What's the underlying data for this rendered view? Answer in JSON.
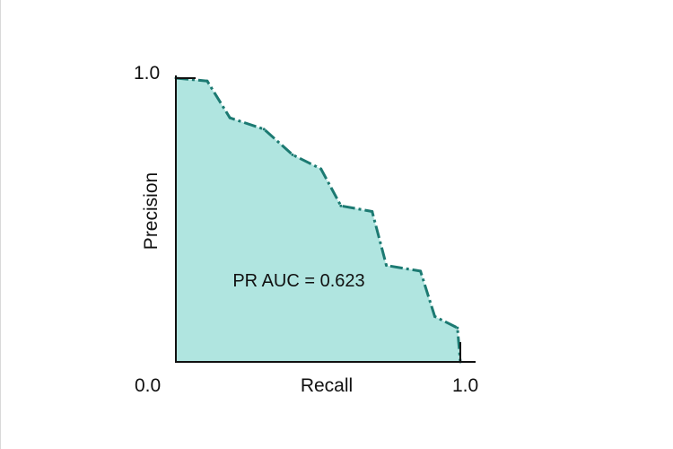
{
  "chart_data": {
    "type": "area",
    "xlabel": "Recall",
    "ylabel": "Precision",
    "xlim": [
      0.0,
      1.0
    ],
    "ylim": [
      0.0,
      1.0
    ],
    "x_tick_labels": [
      "0.0",
      "1.0"
    ],
    "y_tick_labels": [
      "1.0"
    ],
    "annotation": "PR AUC = 0.623",
    "grid": false,
    "series": [
      {
        "x": [
          0.0,
          0.11,
          0.19,
          0.31,
          0.41,
          0.51,
          0.58,
          0.69,
          0.74,
          0.86,
          0.91,
          0.99,
          1.0
        ],
        "y": [
          1.0,
          0.99,
          0.86,
          0.82,
          0.73,
          0.68,
          0.55,
          0.53,
          0.34,
          0.32,
          0.16,
          0.12,
          0.0
        ]
      }
    ],
    "colors": {
      "fill": "#b0e5e0",
      "line": "#1c7a72",
      "axis": "#111111"
    }
  }
}
